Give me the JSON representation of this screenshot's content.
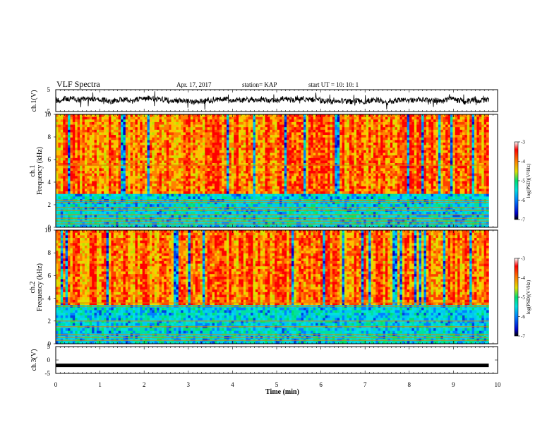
{
  "header": {
    "title": "VLF Spectra",
    "date": "Apr. 17, 2017",
    "station": "station= KAP",
    "start": "start  UT =   10: 10: 1"
  },
  "colors": {
    "axis": "#000000",
    "background": "#ffffff",
    "colormap": [
      "#000000",
      "#0000c8",
      "#0080ff",
      "#00e0e0",
      "#00e070",
      "#60e020",
      "#e0e000",
      "#ff8000",
      "#ff0000",
      "#ffffff"
    ]
  },
  "chart_data": [
    {
      "type": "line",
      "name": "ch1-waveform",
      "ylabel": "ch.1(V)",
      "ylim": [
        -5,
        5
      ],
      "yticks": [
        5,
        -5
      ],
      "xlim": [
        0,
        10
      ],
      "baseline": 0.2,
      "amplitude": 2.8
    },
    {
      "type": "heatmap",
      "name": "ch1-spectrogram",
      "ylabel_line1": "ch.1",
      "ylabel_line2": "Frequency  (kHz)",
      "ylim": [
        0,
        10
      ],
      "yticks": [
        0,
        2,
        4,
        6,
        8,
        10
      ],
      "xlim": [
        0,
        9.8
      ],
      "colorbar": {
        "label": "log(PSD)(V²/Hz)",
        "range": [
          -7,
          -3
        ],
        "ticks": [
          -3,
          -4,
          -5,
          -6,
          -7
        ]
      },
      "lines_khz": [
        0.3,
        0.55,
        0.8,
        1.1,
        1.5,
        1.75,
        2.2,
        2.35,
        5.5
      ]
    },
    {
      "type": "heatmap",
      "name": "ch2-spectrogram",
      "ylabel_line1": "ch.2",
      "ylabel_line2": "Frequency  (kHz)",
      "ylim": [
        0,
        10
      ],
      "yticks": [
        0,
        2,
        4,
        6,
        8,
        10
      ],
      "xlim": [
        0,
        9.8
      ],
      "colorbar": {
        "label": "log(PSD)(V²/Hz)",
        "range": [
          -7,
          -3
        ],
        "ticks": [
          -3,
          -4,
          -5,
          -6,
          -7
        ]
      },
      "lines_khz": [
        0.3,
        0.55,
        0.8,
        1.5,
        2.0,
        3.3,
        3.6
      ]
    },
    {
      "type": "line",
      "name": "ch3-waveform",
      "ylabel": "ch.3(V)",
      "ylim": [
        -5,
        5
      ],
      "yticks": [
        5,
        0,
        -5
      ],
      "xlim": [
        0,
        10
      ],
      "baseline": -2.0,
      "amplitude": 0.1
    }
  ],
  "xaxis": {
    "label": "Time  (min)",
    "ticks": [
      0,
      1,
      2,
      3,
      4,
      5,
      6,
      7,
      8,
      9,
      10
    ],
    "range": [
      0,
      10
    ]
  }
}
